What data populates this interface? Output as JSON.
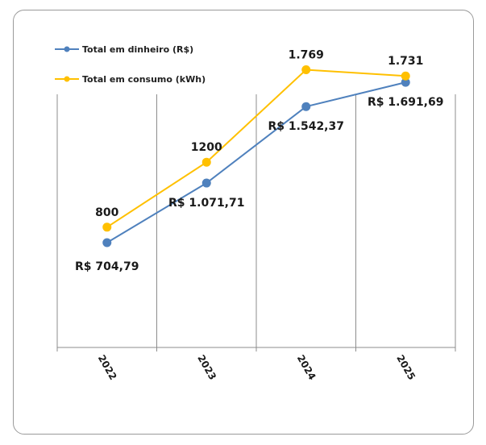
{
  "chart_data": {
    "type": "line",
    "categories": [
      "2022",
      "2023",
      "2024",
      "2025"
    ],
    "series": [
      {
        "name": "Total em dinheiro (R$)",
        "color": "#4f81bd",
        "values": [
          704.79,
          1071.71,
          1542.37,
          1691.69
        ],
        "labels": [
          "R$ 704,79",
          "R$ 1.071,71",
          "R$ 1.542,37",
          "R$ 1.691,69"
        ]
      },
      {
        "name": "Total em consumo (kWh)",
        "color": "#ffc000",
        "values": [
          800,
          1200,
          1769,
          1731
        ],
        "labels": [
          "800",
          "1200",
          "1.769",
          "1.731"
        ]
      }
    ],
    "gridlines": "vertical",
    "legend_position": "top-left",
    "x_tick_rotation": "rotated"
  }
}
